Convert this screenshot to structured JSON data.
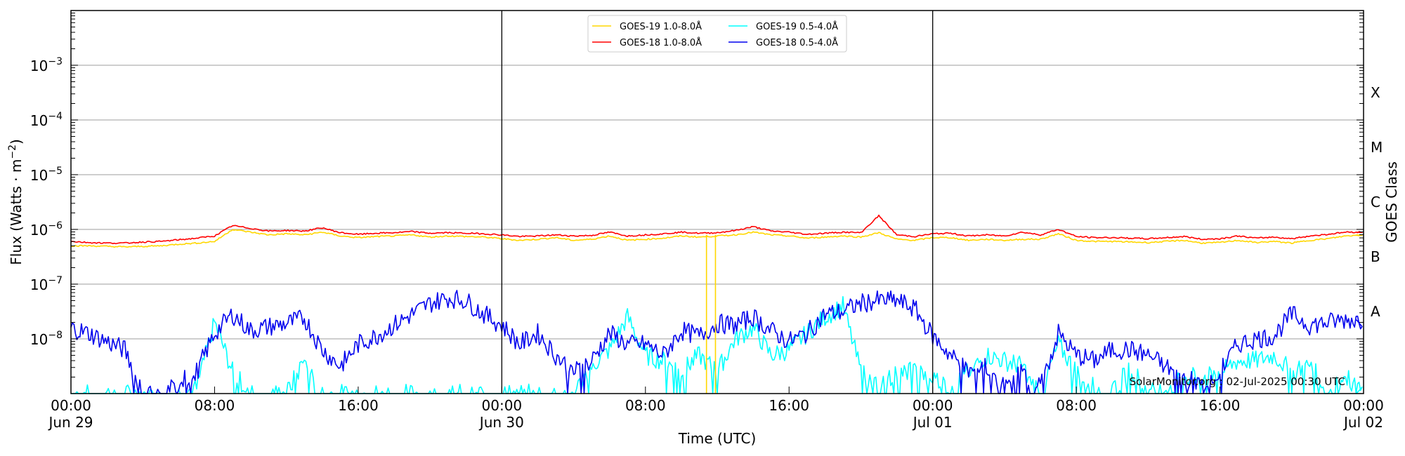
{
  "chart_data": {
    "type": "line",
    "title": "",
    "xlabel": "Time (UTC)",
    "ylabel": "Flux (Watts · m⁻²)",
    "y2label": "GOES Class",
    "yscale": "log",
    "ylim": [
      1e-09,
      0.01
    ],
    "xlim": [
      "2025-06-29 00:00",
      "2025-07-02 00:00"
    ],
    "grid": {
      "horizontal": true,
      "vertical": false
    },
    "legend_position": "upper center",
    "x_ticks": [
      {
        "hour": 0,
        "label": "00:00",
        "sublabel": "Jun 29"
      },
      {
        "hour": 8,
        "label": "08:00",
        "sublabel": ""
      },
      {
        "hour": 16,
        "label": "16:00",
        "sublabel": ""
      },
      {
        "hour": 24,
        "label": "00:00",
        "sublabel": "Jun 30"
      },
      {
        "hour": 32,
        "label": "08:00",
        "sublabel": ""
      },
      {
        "hour": 40,
        "label": "16:00",
        "sublabel": ""
      },
      {
        "hour": 48,
        "label": "00:00",
        "sublabel": "Jul 01"
      },
      {
        "hour": 56,
        "label": "08:00",
        "sublabel": ""
      },
      {
        "hour": 64,
        "label": "16:00",
        "sublabel": ""
      },
      {
        "hour": 72,
        "label": "00:00",
        "sublabel": "Jul 02"
      }
    ],
    "y_ticks": [
      {
        "exp": -3,
        "label": "10",
        "sup": "−3"
      },
      {
        "exp": -4,
        "label": "10",
        "sup": "−4"
      },
      {
        "exp": -5,
        "label": "10",
        "sup": "−5"
      },
      {
        "exp": -6,
        "label": "10",
        "sup": "−6"
      },
      {
        "exp": -7,
        "label": "10",
        "sup": "−7"
      },
      {
        "exp": -8,
        "label": "10",
        "sup": "−8"
      }
    ],
    "goes_classes": [
      {
        "label": "X",
        "exp": -3.5
      },
      {
        "label": "M",
        "exp": -4.5
      },
      {
        "label": "C",
        "exp": -5.5
      },
      {
        "label": "B",
        "exp": -6.5
      },
      {
        "label": "A",
        "exp": -7.5
      }
    ],
    "day_separators_hours": [
      24,
      48
    ],
    "annotation": "SolarMonitor.org : 02-Jul-2025 00:30 UTC",
    "series": [
      {
        "name": "GOES-19 1.0-8.0Å",
        "color": "#ffd700",
        "step_hours": 1,
        "log10_values": [
          -6.3,
          -6.3,
          -6.31,
          -6.32,
          -6.31,
          -6.3,
          -6.27,
          -6.25,
          -6.22,
          -6.0,
          -6.05,
          -6.1,
          -6.08,
          -6.1,
          -6.05,
          -6.12,
          -6.15,
          -6.13,
          -6.12,
          -6.1,
          -6.14,
          -6.12,
          -6.13,
          -6.14,
          -6.17,
          -6.2,
          -6.18,
          -6.15,
          -6.2,
          -6.18,
          -6.12,
          -6.2,
          -6.18,
          -6.16,
          -6.12,
          -6.14,
          -6.12,
          -6.1,
          -6.05,
          -6.1,
          -6.12,
          -6.16,
          -6.14,
          -6.12,
          -6.14,
          -6.06,
          -6.18,
          -6.2,
          -6.15,
          -6.15,
          -6.2,
          -6.18,
          -6.2,
          -6.18,
          -6.18,
          -6.08,
          -6.2,
          -6.22,
          -6.22,
          -6.23,
          -6.24,
          -6.22,
          -6.2,
          -6.25,
          -6.24,
          -6.2,
          -6.24,
          -6.22,
          -6.25,
          -6.2,
          -6.17,
          -6.12,
          -6.1
        ]
      },
      {
        "name": "GOES-18 1.0-8.0Å",
        "color": "#ff0000",
        "step_hours": 1,
        "log10_values": [
          -6.22,
          -6.24,
          -6.25,
          -6.25,
          -6.23,
          -6.22,
          -6.19,
          -6.16,
          -6.12,
          -5.93,
          -5.98,
          -6.03,
          -6.02,
          -6.03,
          -5.97,
          -6.06,
          -6.09,
          -6.07,
          -6.06,
          -6.04,
          -6.07,
          -6.06,
          -6.07,
          -6.08,
          -6.1,
          -6.13,
          -6.12,
          -6.1,
          -6.12,
          -6.11,
          -6.05,
          -6.12,
          -6.1,
          -6.08,
          -6.05,
          -6.07,
          -6.06,
          -6.02,
          -5.95,
          -6.03,
          -6.05,
          -6.09,
          -6.07,
          -6.05,
          -6.06,
          -5.75,
          -6.1,
          -6.13,
          -6.08,
          -6.07,
          -6.12,
          -6.1,
          -6.12,
          -6.05,
          -6.1,
          -6.0,
          -6.13,
          -6.15,
          -6.15,
          -6.16,
          -6.17,
          -6.15,
          -6.13,
          -6.18,
          -6.17,
          -6.12,
          -6.16,
          -6.14,
          -6.17,
          -6.12,
          -6.09,
          -6.05,
          -6.05
        ]
      },
      {
        "name": "GOES-19 0.5-4.0Å",
        "color": "#00ffff",
        "step_hours": 1,
        "log10_values": [
          -9,
          -9,
          -9,
          -9,
          -9,
          -9,
          -9,
          -8.9,
          -7.7,
          -8.6,
          -9,
          -9,
          -9,
          -8.4,
          -9,
          -9,
          -9,
          -9,
          -9,
          -9,
          -9,
          -9,
          -9,
          -9,
          -9,
          -9,
          -9,
          -9,
          -9,
          -8.5,
          -8.2,
          -7.6,
          -8.3,
          -8.4,
          -8.6,
          -8.3,
          -8.6,
          -8.0,
          -7.8,
          -8.3,
          -8.2,
          -7.9,
          -7.6,
          -7.4,
          -8.6,
          -8.9,
          -8.6,
          -8.6,
          -8.7,
          -8.9,
          -8.6,
          -8.3,
          -8.4,
          -8.5,
          -9,
          -8.1,
          -8.6,
          -8.9,
          -9,
          -8.5,
          -9,
          -8.9,
          -8.7,
          -8.7,
          -8.6,
          -8.4,
          -8.4,
          -8.3,
          -8.6,
          -8.5,
          -8.9,
          -8.7,
          -9
        ]
      },
      {
        "name": "GOES-18 0.5-4.0Å",
        "color": "#0000ee",
        "step_hours": 1,
        "log10_values": [
          -7.8,
          -7.9,
          -8.05,
          -8.2,
          -9,
          -9,
          -8.8,
          -8.6,
          -7.9,
          -7.55,
          -7.85,
          -7.78,
          -7.72,
          -7.62,
          -8.2,
          -8.5,
          -8.1,
          -7.95,
          -7.75,
          -7.55,
          -7.35,
          -7.25,
          -7.3,
          -7.55,
          -7.75,
          -8.1,
          -7.9,
          -8.3,
          -8.6,
          -8.4,
          -7.9,
          -8.1,
          -8.1,
          -8.3,
          -7.85,
          -7.95,
          -7.72,
          -7.75,
          -7.6,
          -7.85,
          -8.05,
          -7.9,
          -7.55,
          -7.5,
          -7.35,
          -7.3,
          -7.3,
          -7.45,
          -7.95,
          -8.3,
          -8.6,
          -8.5,
          -8.9,
          -8.6,
          -8.9,
          -7.9,
          -8.3,
          -8.4,
          -8.2,
          -8.2,
          -8.3,
          -8.5,
          -8.7,
          -8.8,
          -8.6,
          -8.1,
          -8.0,
          -7.95,
          -7.55,
          -7.75,
          -7.7,
          -7.65,
          -7.65
        ]
      }
    ]
  },
  "legend": {
    "items": [
      {
        "label": "GOES-19 1.0-8.0Å",
        "color": "#ffd700"
      },
      {
        "label": "GOES-19 0.5-4.0Å",
        "color": "#00ffff"
      },
      {
        "label": "GOES-18 1.0-8.0Å",
        "color": "#ff0000"
      },
      {
        "label": "GOES-18 0.5-4.0Å",
        "color": "#0000ee"
      }
    ]
  },
  "axes": {
    "ylabel_main": "Flux (Watts · m",
    "ylabel_sup": "−2",
    "ylabel_close": ")",
    "y2label": "GOES Class",
    "xlabel": "Time (UTC)"
  },
  "watermark": "SolarMonitor.org : 02-Jul-2025 00:30 UTC"
}
